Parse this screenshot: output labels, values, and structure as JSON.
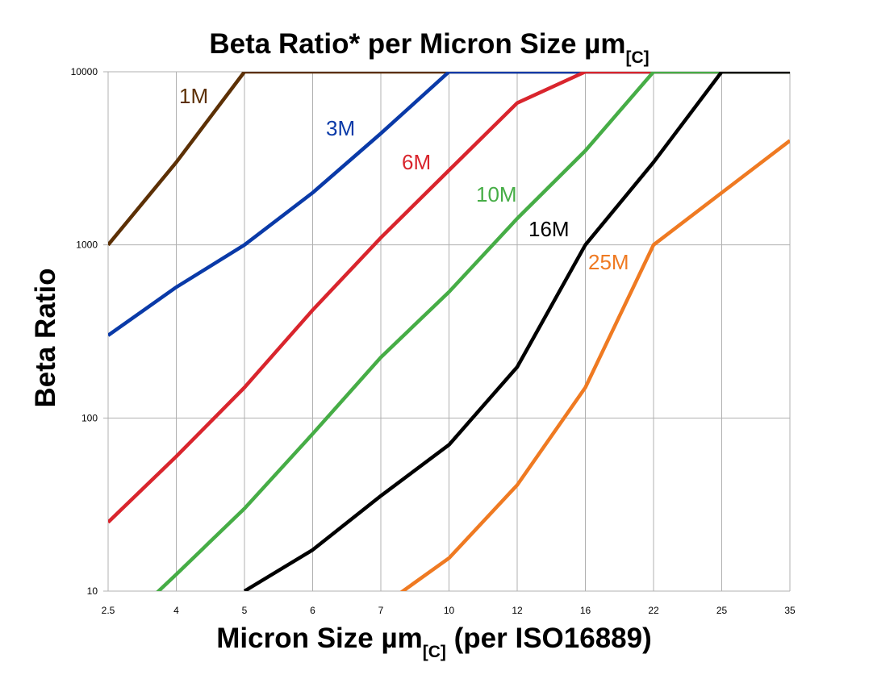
{
  "chart_data": {
    "type": "line",
    "title": "Beta Ratio* per Micron Size µm",
    "title_subscript": "[C]",
    "xlabel": "Micron Size µm",
    "xlabel_subscript": "[C]",
    "xlabel_suffix": " (per ISO16889)",
    "ylabel": "Beta Ratio",
    "y_scale": "log",
    "ylim": [
      10,
      10000
    ],
    "y_ticks": [
      "10",
      "100",
      "1000",
      "10000"
    ],
    "categories": [
      "2.5",
      "4",
      "5",
      "6",
      "7",
      "10",
      "12",
      "16",
      "22",
      "25",
      "35"
    ],
    "grid": true,
    "series": [
      {
        "name": "1M",
        "color": "#5c3005",
        "values": [
          1000,
          3000,
          10000,
          10000,
          10000,
          10000,
          10000,
          10000,
          10000,
          10000,
          10000
        ]
      },
      {
        "name": "3M",
        "color": "#0a3aa8",
        "values": [
          300,
          570,
          1000,
          2000,
          4400,
          10000,
          10000,
          10000,
          10000,
          10000,
          10000
        ]
      },
      {
        "name": "6M",
        "color": "#d9252d",
        "values": [
          25,
          60,
          150,
          420,
          1100,
          2700,
          6600,
          10000,
          10000,
          10000,
          10000
        ]
      },
      {
        "name": "10M",
        "color": "#46ad46",
        "values": [
          5.3,
          12.5,
          30,
          81,
          224,
          535,
          1420,
          3500,
          10000,
          10000,
          10000
        ]
      },
      {
        "name": "16M",
        "color": "#000000",
        "values": [
          null,
          null,
          10,
          17.3,
          35.5,
          70,
          197,
          1000,
          3000,
          10000,
          10000
        ]
      },
      {
        "name": "25M",
        "color": "#ef7a22",
        "values": [
          null,
          null,
          null,
          null,
          8.1,
          15.5,
          41,
          150,
          1000,
          2000,
          4000
        ]
      }
    ]
  }
}
